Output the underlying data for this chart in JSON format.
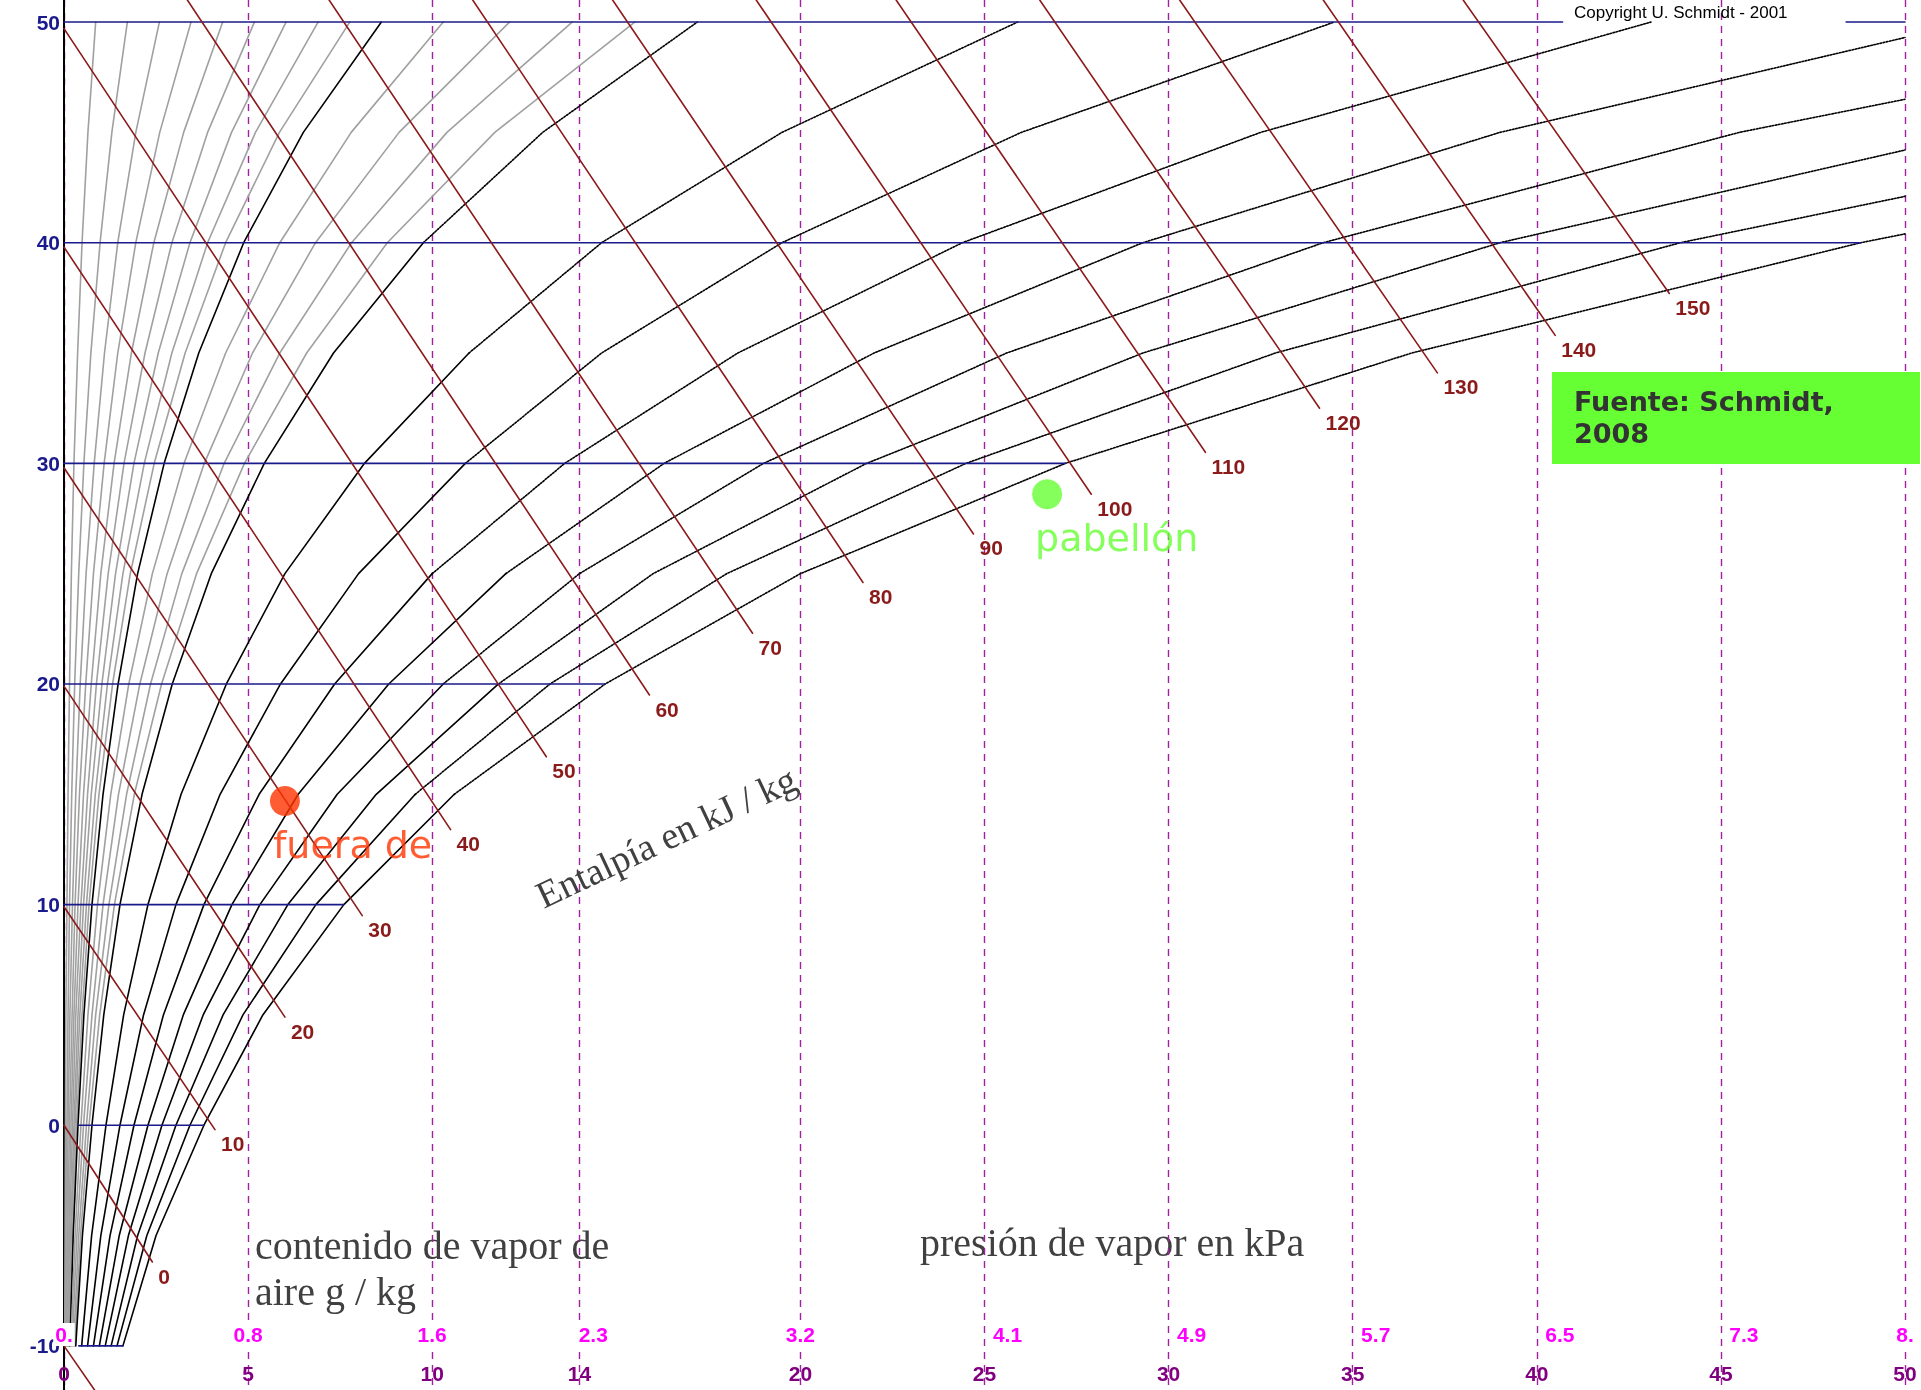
{
  "chart_data": {
    "type": "line",
    "xlabel": "contenido de vapor de aire g / kg",
    "x2label": "presión de vapor en kPa",
    "annotations": [
      "Entalpía en kJ / kg",
      "Copyright U. Schmidt - 2001",
      "Fuente: Schmidt, 2008"
    ],
    "xlim": [
      0,
      50
    ],
    "xticks": [
      0,
      5,
      10,
      14,
      20,
      25,
      30,
      35,
      40,
      45,
      50
    ],
    "x2lim": [
      0,
      8
    ],
    "x2ticks": [
      {
        "value": 0,
        "label": "0."
      },
      0.8,
      1.6,
      2.3,
      3.2,
      4.1,
      4.9,
      5.7,
      6.5,
      7.3,
      {
        "value": 8,
        "label": "8."
      }
    ],
    "ylim": [
      -12,
      51
    ],
    "yticks": [
      -10,
      0,
      10,
      20,
      30,
      40,
      50
    ],
    "grid": "x",
    "series": [
      {
        "color": "#a0a0a0",
        "x": [
          0.02,
          0.03,
          0.04,
          0.05,
          0.08,
          0.11,
          0.15,
          0.2,
          0.27,
          0.37,
          0.49,
          0.65,
          0.86
        ],
        "values": [
          -10,
          -5,
          0,
          5,
          10,
          15,
          20,
          25,
          30,
          35,
          40,
          45,
          50
        ]
      },
      {
        "color": "#a0a0a0",
        "x": [
          0.03,
          0.05,
          0.08,
          0.11,
          0.15,
          0.21,
          0.29,
          0.4,
          0.54,
          0.73,
          0.98,
          1.3,
          1.72
        ],
        "values": [
          -10,
          -5,
          0,
          5,
          10,
          15,
          20,
          25,
          30,
          35,
          40,
          45,
          50
        ]
      },
      {
        "color": "#a0a0a0",
        "x": [
          0.05,
          0.08,
          0.11,
          0.16,
          0.23,
          0.32,
          0.44,
          0.6,
          0.82,
          1.1,
          1.46,
          1.95,
          2.59
        ],
        "values": [
          -10,
          -5,
          0,
          5,
          10,
          15,
          20,
          25,
          30,
          35,
          40,
          45,
          50
        ]
      },
      {
        "color": "#a0a0a0",
        "x": [
          0.06,
          0.1,
          0.15,
          0.22,
          0.3,
          0.42,
          0.59,
          0.8,
          1.09,
          1.46,
          1.95,
          2.6,
          3.45
        ],
        "values": [
          -10,
          -5,
          0,
          5,
          10,
          15,
          20,
          25,
          30,
          35,
          40,
          45,
          50
        ]
      },
      {
        "color": "#a0a0a0",
        "x": [
          0.08,
          0.13,
          0.19,
          0.27,
          0.38,
          0.53,
          0.74,
          1.0,
          1.36,
          1.83,
          2.44,
          3.25,
          4.31
        ],
        "values": [
          -10,
          -5,
          0,
          5,
          10,
          15,
          20,
          25,
          30,
          35,
          40,
          45,
          50
        ]
      },
      {
        "color": "#a0a0a0",
        "x": [
          0.1,
          0.15,
          0.23,
          0.32,
          0.46,
          0.64,
          0.88,
          1.2,
          1.63,
          2.2,
          2.93,
          3.9,
          5.17
        ],
        "values": [
          -10,
          -5,
          0,
          5,
          10,
          15,
          20,
          25,
          30,
          35,
          40,
          45,
          50
        ]
      },
      {
        "color": "#a0a0a0",
        "x": [
          0.11,
          0.18,
          0.27,
          0.38,
          0.53,
          0.74,
          1.03,
          1.4,
          1.9,
          2.56,
          3.42,
          4.55,
          6.03
        ],
        "values": [
          -10,
          -5,
          0,
          5,
          10,
          15,
          20,
          25,
          30,
          35,
          40,
          45,
          50
        ]
      },
      {
        "color": "#a0a0a0",
        "x": [
          0.13,
          0.2,
          0.3,
          0.43,
          0.61,
          0.85,
          1.18,
          1.6,
          2.18,
          2.93,
          3.9,
          5.2,
          6.9
        ],
        "values": [
          -10,
          -5,
          0,
          5,
          10,
          15,
          20,
          25,
          30,
          35,
          40,
          45,
          50
        ]
      },
      {
        "color": "#a0a0a0",
        "x": [
          0.14,
          0.23,
          0.34,
          0.49,
          0.68,
          0.95,
          1.32,
          1.8,
          2.45,
          3.29,
          4.39,
          5.85,
          7.76
        ],
        "values": [
          -10,
          -5,
          0,
          5,
          10,
          15,
          20,
          25,
          30,
          35,
          40,
          45,
          50
        ]
      },
      {
        "color": "#000000",
        "line_style": "solid",
        "x": [
          0.16,
          0.25,
          0.38,
          0.54,
          0.76,
          1.06,
          1.47,
          2.0,
          2.72,
          3.66,
          4.88,
          6.5,
          8.62
        ],
        "values": [
          -10,
          -5,
          0,
          5,
          10,
          15,
          20,
          25,
          30,
          35,
          40,
          45,
          50
        ]
      },
      {
        "color": "#a0a0a0",
        "x": [
          0.19,
          0.3,
          0.46,
          0.65,
          0.91,
          1.27,
          1.76,
          2.4,
          3.26,
          4.39,
          5.86,
          7.8,
          10.3
        ],
        "values": [
          -10,
          -5,
          0,
          5,
          10,
          15,
          20,
          25,
          30,
          35,
          40,
          45,
          50
        ]
      },
      {
        "color": "#a0a0a0",
        "x": [
          0.22,
          0.35,
          0.53,
          0.76,
          1.06,
          1.48,
          2.06,
          2.8,
          3.81,
          5.12,
          6.83,
          9.1,
          12.1
        ],
        "values": [
          -10,
          -5,
          0,
          5,
          10,
          15,
          20,
          25,
          30,
          35,
          40,
          45,
          50
        ]
      },
      {
        "color": "#a0a0a0",
        "x": [
          0.26,
          0.4,
          0.61,
          0.86,
          1.22,
          1.7,
          2.35,
          3.2,
          4.35,
          5.86,
          7.81,
          10.4,
          13.8
        ],
        "values": [
          -10,
          -5,
          0,
          5,
          10,
          15,
          20,
          25,
          30,
          35,
          40,
          45,
          50
        ]
      },
      {
        "color": "#a0a0a0",
        "x": [
          0.29,
          0.45,
          0.68,
          0.97,
          1.37,
          1.91,
          2.65,
          3.6,
          4.9,
          6.59,
          8.78,
          11.7,
          15.5
        ],
        "values": [
          -10,
          -5,
          0,
          5,
          10,
          15,
          20,
          25,
          30,
          35,
          40,
          45,
          50
        ]
      },
      {
        "color": "#000000",
        "line_style": "solid",
        "x": [
          0.32,
          0.5,
          0.76,
          1.08,
          1.52,
          2.12,
          2.94,
          4.0,
          5.44,
          7.32,
          9.76
        ],
        "values": [
          -10,
          -5,
          0,
          5,
          10,
          15,
          20,
          25,
          30,
          35,
          40
        ]
      },
      {
        "color": "#000000",
        "line_style": "dotted",
        "x": [
          9.76,
          13.0,
          17.2
        ],
        "values": [
          40,
          45,
          50
        ]
      },
      {
        "color": "#000000",
        "line_style": "solid",
        "x": [
          0.48,
          0.75,
          1.14,
          1.62,
          2.28,
          3.18,
          4.41,
          6.0,
          8.16,
          11.0
        ],
        "values": [
          -10,
          -5,
          0,
          5,
          10,
          15,
          20,
          25,
          30,
          35
        ]
      },
      {
        "color": "#000000",
        "line_style": "dotted",
        "x": [
          11.0,
          14.6,
          19.5,
          25.9
        ],
        "values": [
          35,
          40,
          45,
          50
        ]
      },
      {
        "color": "#000000",
        "line_style": "solid",
        "x": [
          0.64,
          1.0,
          1.52,
          2.16,
          3.04,
          4.24,
          5.88,
          8.0,
          10.9
        ],
        "values": [
          -10,
          -5,
          0,
          5,
          10,
          15,
          20,
          25,
          30
        ]
      },
      {
        "color": "#000000",
        "line_style": "dotted",
        "x": [
          10.9,
          14.6,
          19.5,
          26.0,
          34.5
        ],
        "values": [
          30,
          35,
          40,
          45,
          50
        ]
      },
      {
        "color": "#000000",
        "line_style": "solid",
        "x": [
          0.8,
          1.25,
          1.9,
          2.7,
          3.8,
          5.3,
          7.35,
          10.0
        ],
        "values": [
          -10,
          -5,
          0,
          5,
          10,
          15,
          20,
          25
        ]
      },
      {
        "color": "#000000",
        "line_style": "dotted",
        "x": [
          10.0,
          13.6,
          18.3,
          24.4,
          32.5,
          43.1
        ],
        "values": [
          25,
          30,
          35,
          40,
          45,
          50
        ]
      },
      {
        "color": "#000000",
        "line_style": "solid",
        "x": [
          0.96,
          1.5,
          2.28,
          3.24,
          4.56,
          6.36,
          8.82,
          12.0
        ],
        "values": [
          -10,
          -5,
          0,
          5,
          10,
          15,
          20,
          25
        ]
      },
      {
        "color": "#000000",
        "line_style": "dotted",
        "x": [
          12.0,
          16.3,
          22.0,
          29.3,
          39.0,
          50
        ],
        "values": [
          25,
          30,
          35,
          40,
          45,
          49.3
        ]
      },
      {
        "color": "#000000",
        "line_style": "solid",
        "x": [
          1.12,
          1.75,
          2.66,
          3.78,
          5.32,
          7.42,
          10.3
        ],
        "values": [
          -10,
          -5,
          0,
          5,
          10,
          15,
          20
        ]
      },
      {
        "color": "#000000",
        "line_style": "dotted",
        "x": [
          10.3,
          14.0,
          19.0,
          25.6,
          34.2,
          45.5,
          50
        ],
        "values": [
          20,
          25,
          30,
          35,
          40,
          45,
          46.5
        ]
      },
      {
        "color": "#000000",
        "line_style": "solid",
        "x": [
          1.28,
          2.0,
          3.04,
          4.32,
          6.08,
          8.48,
          11.8
        ],
        "values": [
          -10,
          -5,
          0,
          5,
          10,
          15,
          20
        ]
      },
      {
        "color": "#000000",
        "line_style": "dotted",
        "x": [
          11.8,
          16.0,
          21.8,
          29.3,
          39.0,
          50
        ],
        "values": [
          20,
          25,
          30,
          35,
          40,
          44.2
        ]
      },
      {
        "color": "#000000",
        "line_style": "solid",
        "x": [
          1.44,
          2.25,
          3.42,
          4.86,
          6.84,
          9.54
        ],
        "values": [
          -10,
          -5,
          0,
          5,
          10,
          15
        ]
      },
      {
        "color": "#000000",
        "line_style": "dotted",
        "x": [
          9.54,
          13.2,
          18.0,
          24.5,
          32.9,
          43.9,
          50
        ],
        "values": [
          15,
          20,
          25,
          30,
          35,
          40,
          42.1
        ]
      },
      {
        "color": "#000000",
        "line_style": "solid",
        "x": [
          1.6,
          2.5,
          3.8,
          5.4,
          7.6,
          10.6
        ],
        "values": [
          -10,
          -5,
          0,
          5,
          10,
          15
        ]
      },
      {
        "color": "#000000",
        "line_style": "dotted",
        "x": [
          10.6,
          14.7,
          20.0,
          27.2,
          36.6,
          48.8,
          50
        ],
        "values": [
          15,
          20,
          25,
          30,
          35,
          40,
          40.4
        ]
      },
      {
        "color": "#1a1a8c",
        "x": [
          0.4,
          1.6
        ],
        "values": [
          -10,
          -10
        ]
      },
      {
        "color": "#1a1a8c",
        "x": [
          0.4,
          3.8
        ],
        "values": [
          0,
          0
        ]
      },
      {
        "color": "#1a1a8c",
        "x": [
          0,
          7.6
        ],
        "values": [
          10,
          10
        ]
      },
      {
        "color": "#1a1a8c",
        "x": [
          0,
          14.7
        ],
        "values": [
          20,
          20
        ]
      },
      {
        "color": "#1a1a8c",
        "x": [
          0,
          27.2
        ],
        "values": [
          30,
          30
        ]
      },
      {
        "color": "#1a1a8c",
        "x": [
          0,
          48.8
        ],
        "values": [
          40,
          40
        ]
      },
      {
        "color": "#1a1a8c",
        "x": [
          0,
          40.7
        ],
        "values": [
          50,
          50
        ]
      },
      {
        "color": "#1a1a8c",
        "x": [
          48.4,
          50
        ],
        "values": [
          50,
          50
        ]
      },
      {
        "color": "#8b1a1a",
        "x": [
          0,
          0.83
        ],
        "values": [
          -10,
          -12
        ]
      },
      {
        "name": "0",
        "color": "#8b1a1a",
        "x": [
          0,
          2.4
        ],
        "values": [
          0,
          -6.2
        ]
      },
      {
        "name": "10",
        "color": "#8b1a1a",
        "x": [
          0,
          4.1
        ],
        "values": [
          9.9,
          -0.2
        ]
      },
      {
        "name": "20",
        "color": "#8b1a1a",
        "x": [
          0,
          6.0
        ],
        "values": [
          19.9,
          4.9
        ]
      },
      {
        "name": "30",
        "color": "#8b1a1a",
        "x": [
          0,
          8.1
        ],
        "values": [
          29.8,
          9.5
        ]
      },
      {
        "name": "40",
        "color": "#8b1a1a",
        "x": [
          0,
          10.5
        ],
        "values": [
          39.8,
          13.4
        ]
      },
      {
        "name": "50",
        "color": "#8b1a1a",
        "x": [
          0,
          13.1
        ],
        "values": [
          49.7,
          16.7
        ]
      },
      {
        "name": "60",
        "color": "#8b1a1a",
        "x": [
          3.35,
          15.9
        ],
        "values": [
          51,
          19.5
        ]
      },
      {
        "name": "70",
        "color": "#8b1a1a",
        "x": [
          7.2,
          18.7
        ],
        "values": [
          51,
          22.3
        ]
      },
      {
        "name": "80",
        "color": "#8b1a1a",
        "x": [
          11.1,
          21.7
        ],
        "values": [
          51,
          24.6
        ]
      },
      {
        "name": "90",
        "color": "#8b1a1a",
        "x": [
          14.9,
          24.7
        ],
        "values": [
          51,
          26.8
        ]
      },
      {
        "name": "100",
        "color": "#8b1a1a",
        "x": [
          18.8,
          27.9
        ],
        "values": [
          51,
          28.6
        ]
      },
      {
        "name": "110",
        "color": "#8b1a1a",
        "x": [
          22.6,
          31.0
        ],
        "values": [
          51,
          30.5
        ]
      },
      {
        "name": "120",
        "color": "#8b1a1a",
        "x": [
          26.5,
          34.1
        ],
        "values": [
          51,
          32.5
        ]
      },
      {
        "name": "130",
        "color": "#8b1a1a",
        "x": [
          30.3,
          37.3
        ],
        "values": [
          51,
          34.1
        ]
      },
      {
        "name": "140",
        "color": "#8b1a1a",
        "x": [
          34.2,
          40.5
        ],
        "values": [
          51,
          35.8
        ]
      },
      {
        "name": "150",
        "color": "#8b1a1a",
        "x": [
          38.0,
          43.6
        ],
        "values": [
          51,
          37.7
        ]
      },
      {
        "type": "scatter",
        "name": "fuera de",
        "color": "#ff3300",
        "marker": "circle",
        "x": [
          6.0
        ],
        "values": [
          14.7
        ]
      },
      {
        "type": "scatter",
        "name": "pabellón",
        "color": "#66ff33",
        "marker": "circle",
        "x": [
          26.7
        ],
        "values": [
          28.6
        ]
      }
    ]
  }
}
